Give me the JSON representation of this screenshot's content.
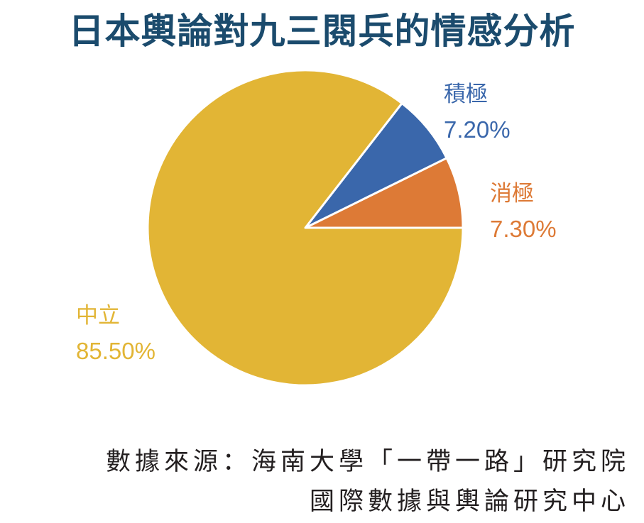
{
  "title": "日本輿論對九三閱兵的情感分析",
  "chart_data": {
    "type": "pie",
    "slices": [
      {
        "label": "消極",
        "value": 7.3,
        "value_text": "7.30%",
        "color": "#dd7a36"
      },
      {
        "label": "積極",
        "value": 7.2,
        "value_text": "7.20%",
        "color": "#3a67ab"
      },
      {
        "label": "中立",
        "value": 85.5,
        "value_text": "85.50%",
        "color": "#e2b535"
      }
    ]
  },
  "source": {
    "line1": "數據來源：海南大學「一帶一路」研究院",
    "line2": "國際數據與輿論研究中心"
  }
}
